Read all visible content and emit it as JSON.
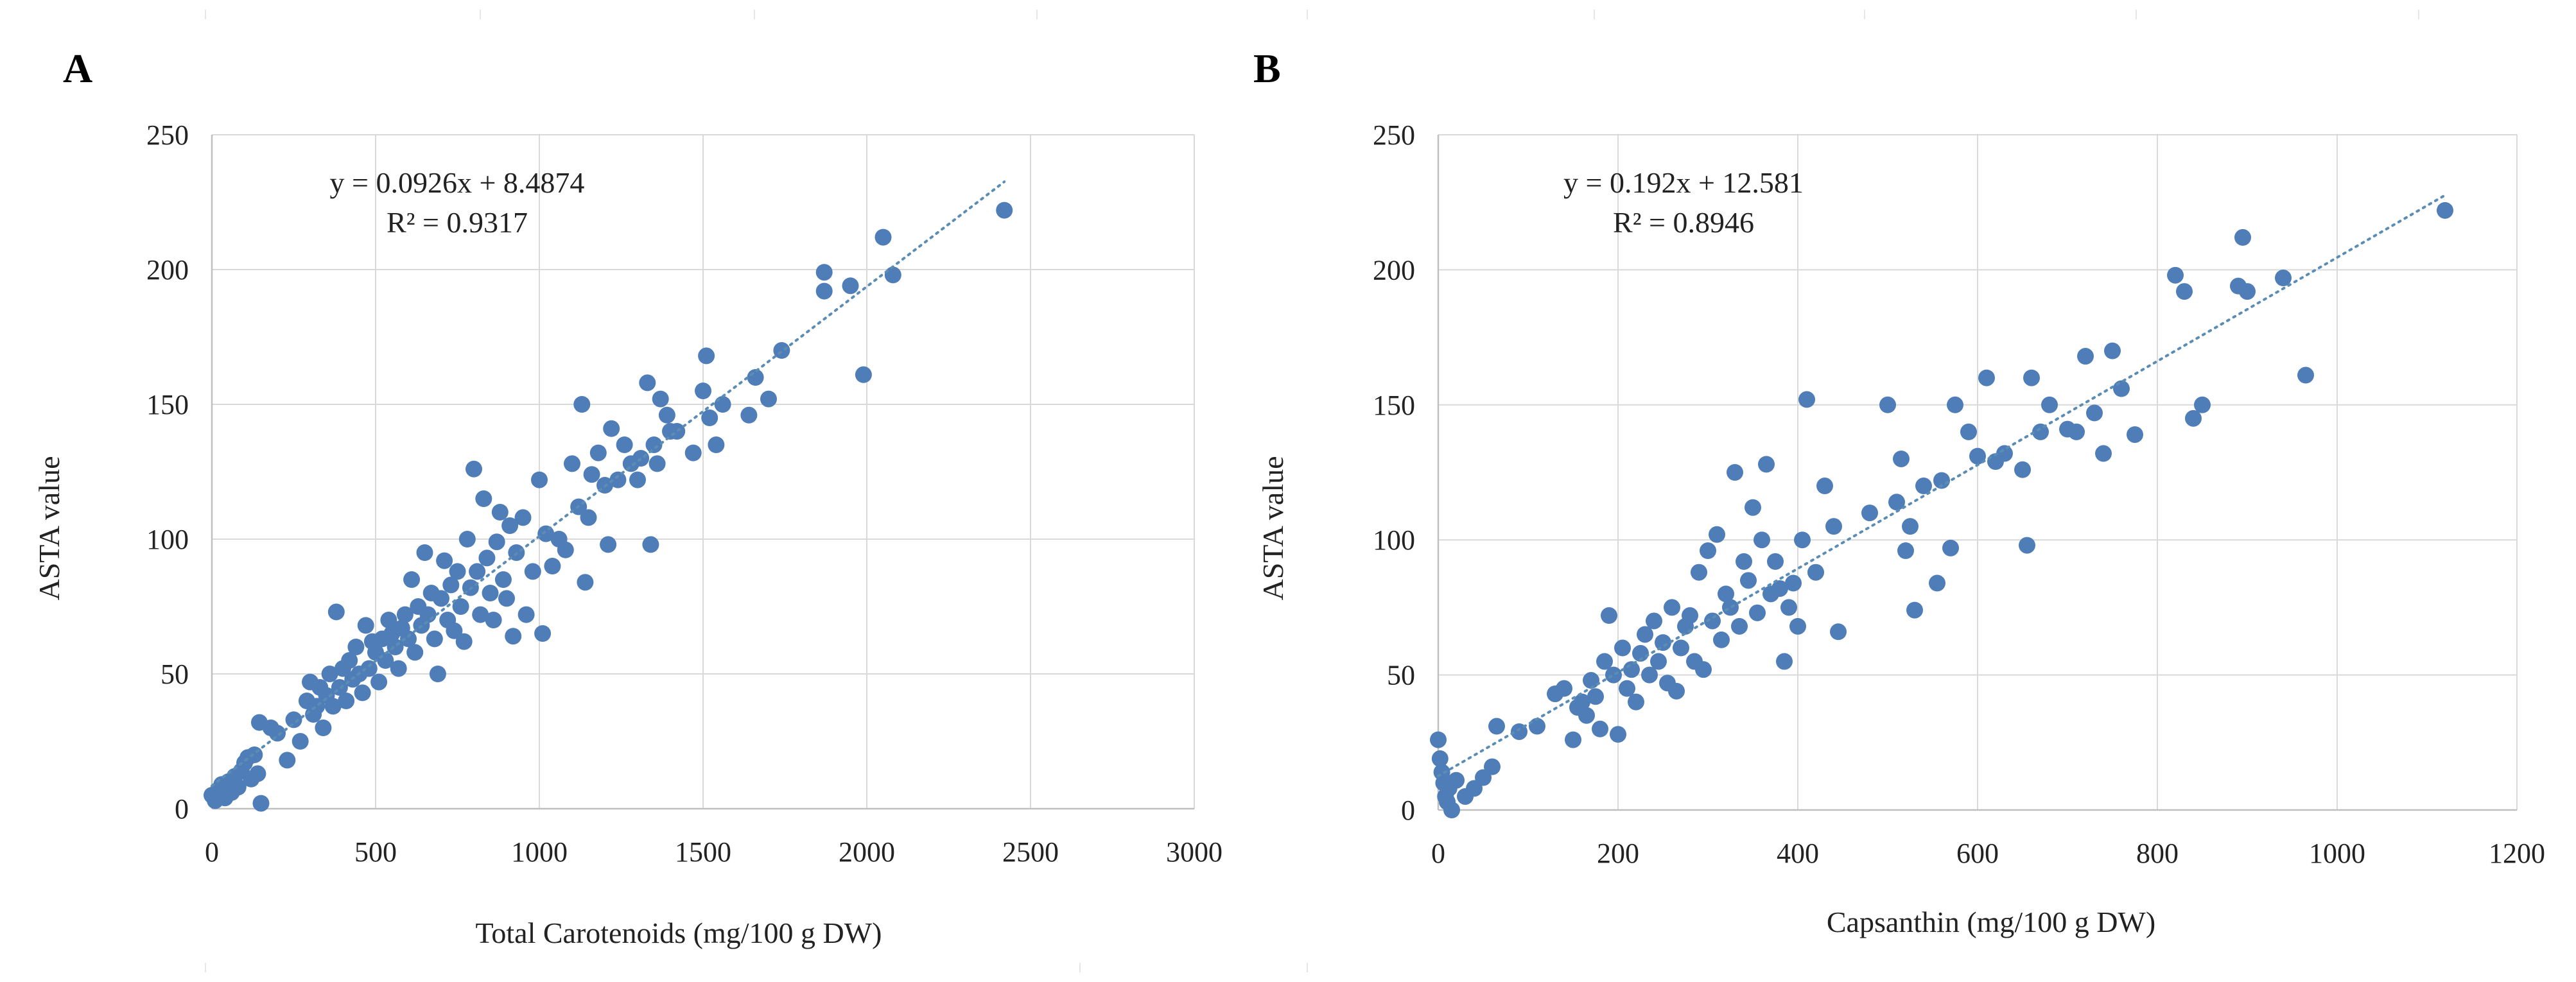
{
  "colors": {
    "points": "#4f7db8",
    "trendline": "#5b8db4",
    "grid": "#d9d9d9"
  },
  "chart_data": [
    {
      "panel_label": "A",
      "type": "scatter",
      "title": "",
      "xlabel": "Total Carotenoids (mg/100 g DW)",
      "ylabel": "ASTA value",
      "xlim": [
        0,
        3000
      ],
      "ylim": [
        0,
        250
      ],
      "xticks": [
        0,
        500,
        1000,
        1500,
        2000,
        2500,
        3000
      ],
      "yticks": [
        0,
        50,
        100,
        150,
        200,
        250
      ],
      "xtick_labels": [
        "0",
        "500",
        "1000",
        "1500",
        "2000",
        "2500",
        "3000"
      ],
      "ytick_labels": [
        "0",
        "50",
        "100",
        "150",
        "200",
        "250"
      ],
      "grid": true,
      "trendline": {
        "slope": 0.0926,
        "intercept": 8.4874,
        "x_range": [
          0,
          2420
        ]
      },
      "equation": "y = 0.0926x + 8.4874",
      "r_squared": "R² = 0.9317",
      "points": [
        [
          0,
          5
        ],
        [
          10,
          3
        ],
        [
          20,
          7
        ],
        [
          30,
          9
        ],
        [
          40,
          4
        ],
        [
          50,
          10
        ],
        [
          60,
          6
        ],
        [
          70,
          12
        ],
        [
          80,
          8
        ],
        [
          90,
          14
        ],
        [
          100,
          17
        ],
        [
          110,
          19
        ],
        [
          120,
          11
        ],
        [
          130,
          20
        ],
        [
          140,
          13
        ],
        [
          150,
          2
        ],
        [
          145,
          32
        ],
        [
          180,
          30
        ],
        [
          200,
          28
        ],
        [
          230,
          18
        ],
        [
          250,
          33
        ],
        [
          270,
          25
        ],
        [
          290,
          40
        ],
        [
          300,
          47
        ],
        [
          310,
          35
        ],
        [
          320,
          38
        ],
        [
          330,
          45
        ],
        [
          340,
          30
        ],
        [
          350,
          42
        ],
        [
          360,
          50
        ],
        [
          370,
          38
        ],
        [
          380,
          73
        ],
        [
          390,
          45
        ],
        [
          400,
          52
        ],
        [
          410,
          40
        ],
        [
          420,
          55
        ],
        [
          430,
          48
        ],
        [
          440,
          60
        ],
        [
          450,
          50
        ],
        [
          460,
          43
        ],
        [
          470,
          68
        ],
        [
          480,
          52
        ],
        [
          490,
          62
        ],
        [
          500,
          58
        ],
        [
          510,
          47
        ],
        [
          520,
          63
        ],
        [
          530,
          55
        ],
        [
          540,
          70
        ],
        [
          550,
          65
        ],
        [
          560,
          60
        ],
        [
          570,
          52
        ],
        [
          580,
          67
        ],
        [
          590,
          72
        ],
        [
          600,
          63
        ],
        [
          610,
          85
        ],
        [
          620,
          58
        ],
        [
          630,
          75
        ],
        [
          640,
          68
        ],
        [
          650,
          95
        ],
        [
          660,
          72
        ],
        [
          670,
          80
        ],
        [
          680,
          63
        ],
        [
          690,
          50
        ],
        [
          700,
          78
        ],
        [
          710,
          92
        ],
        [
          720,
          70
        ],
        [
          730,
          83
        ],
        [
          740,
          66
        ],
        [
          750,
          88
        ],
        [
          760,
          75
        ],
        [
          770,
          62
        ],
        [
          780,
          100
        ],
        [
          790,
          82
        ],
        [
          800,
          126
        ],
        [
          810,
          88
        ],
        [
          820,
          72
        ],
        [
          830,
          115
        ],
        [
          840,
          93
        ],
        [
          850,
          80
        ],
        [
          860,
          70
        ],
        [
          870,
          99
        ],
        [
          880,
          110
        ],
        [
          890,
          85
        ],
        [
          900,
          78
        ],
        [
          910,
          105
        ],
        [
          920,
          64
        ],
        [
          930,
          95
        ],
        [
          950,
          108
        ],
        [
          960,
          72
        ],
        [
          980,
          88
        ],
        [
          1000,
          122
        ],
        [
          1010,
          65
        ],
        [
          1020,
          102
        ],
        [
          1040,
          90
        ],
        [
          1060,
          100
        ],
        [
          1080,
          96
        ],
        [
          1100,
          128
        ],
        [
          1120,
          112
        ],
        [
          1130,
          150
        ],
        [
          1140,
          84
        ],
        [
          1150,
          108
        ],
        [
          1160,
          124
        ],
        [
          1180,
          132
        ],
        [
          1200,
          120
        ],
        [
          1210,
          98
        ],
        [
          1220,
          141
        ],
        [
          1240,
          122
        ],
        [
          1260,
          135
        ],
        [
          1280,
          128
        ],
        [
          1300,
          122
        ],
        [
          1310,
          130
        ],
        [
          1330,
          158
        ],
        [
          1340,
          98
        ],
        [
          1350,
          135
        ],
        [
          1360,
          128
        ],
        [
          1370,
          152
        ],
        [
          1390,
          146
        ],
        [
          1400,
          140
        ],
        [
          1420,
          140
        ],
        [
          1470,
          132
        ],
        [
          1500,
          155
        ],
        [
          1510,
          168
        ],
        [
          1520,
          145
        ],
        [
          1540,
          135
        ],
        [
          1560,
          150
        ],
        [
          1640,
          146
        ],
        [
          1660,
          160
        ],
        [
          1700,
          152
        ],
        [
          1740,
          170
        ],
        [
          1870,
          199
        ],
        [
          1870,
          192
        ],
        [
          1950,
          194
        ],
        [
          1990,
          161
        ],
        [
          2050,
          212
        ],
        [
          2080,
          198
        ],
        [
          2420,
          222
        ]
      ]
    },
    {
      "panel_label": "B",
      "type": "scatter",
      "title": "",
      "xlabel": "Capsanthin (mg/100 g DW)",
      "ylabel": "ASTA value",
      "xlim": [
        0,
        1200
      ],
      "ylim": [
        0,
        250
      ],
      "xticks": [
        0,
        200,
        400,
        600,
        800,
        1000,
        1200
      ],
      "yticks": [
        0,
        50,
        100,
        150,
        200,
        250
      ],
      "xtick_labels": [
        "0",
        "200",
        "400",
        "600",
        "800",
        "1000",
        "1200"
      ],
      "ytick_labels": [
        "0",
        "50",
        "100",
        "150",
        "200",
        "250"
      ],
      "grid": true,
      "trendline": {
        "slope": 0.192,
        "intercept": 12.581,
        "x_range": [
          0,
          1120
        ]
      },
      "equation": "y = 0.192x + 12.581",
      "r_squared": "R² = 0.8946",
      "points": [
        [
          0,
          26
        ],
        [
          2,
          19
        ],
        [
          4,
          14
        ],
        [
          6,
          10
        ],
        [
          8,
          5
        ],
        [
          10,
          3
        ],
        [
          12,
          8
        ],
        [
          15,
          0
        ],
        [
          20,
          11
        ],
        [
          30,
          5
        ],
        [
          40,
          8
        ],
        [
          50,
          12
        ],
        [
          60,
          16
        ],
        [
          65,
          31
        ],
        [
          90,
          29
        ],
        [
          110,
          31
        ],
        [
          130,
          43
        ],
        [
          140,
          45
        ],
        [
          150,
          26
        ],
        [
          155,
          38
        ],
        [
          160,
          40
        ],
        [
          165,
          35
        ],
        [
          170,
          48
        ],
        [
          175,
          42
        ],
        [
          180,
          30
        ],
        [
          185,
          55
        ],
        [
          190,
          72
        ],
        [
          195,
          50
        ],
        [
          200,
          28
        ],
        [
          205,
          60
        ],
        [
          210,
          45
        ],
        [
          215,
          52
        ],
        [
          220,
          40
        ],
        [
          225,
          58
        ],
        [
          230,
          65
        ],
        [
          235,
          50
        ],
        [
          240,
          70
        ],
        [
          245,
          55
        ],
        [
          250,
          62
        ],
        [
          255,
          47
        ],
        [
          260,
          75
        ],
        [
          265,
          44
        ],
        [
          270,
          60
        ],
        [
          275,
          68
        ],
        [
          280,
          72
        ],
        [
          285,
          55
        ],
        [
          290,
          88
        ],
        [
          295,
          52
        ],
        [
          300,
          96
        ],
        [
          305,
          70
        ],
        [
          310,
          102
        ],
        [
          315,
          63
        ],
        [
          320,
          80
        ],
        [
          325,
          75
        ],
        [
          330,
          125
        ],
        [
          335,
          68
        ],
        [
          340,
          92
        ],
        [
          345,
          85
        ],
        [
          350,
          112
        ],
        [
          355,
          73
        ],
        [
          360,
          100
        ],
        [
          365,
          128
        ],
        [
          370,
          80
        ],
        [
          375,
          92
        ],
        [
          380,
          82
        ],
        [
          385,
          55
        ],
        [
          390,
          75
        ],
        [
          395,
          84
        ],
        [
          400,
          68
        ],
        [
          405,
          100
        ],
        [
          410,
          152
        ],
        [
          420,
          88
        ],
        [
          430,
          120
        ],
        [
          440,
          105
        ],
        [
          445,
          66
        ],
        [
          480,
          110
        ],
        [
          500,
          150
        ],
        [
          510,
          114
        ],
        [
          515,
          130
        ],
        [
          520,
          96
        ],
        [
          525,
          105
        ],
        [
          530,
          74
        ],
        [
          540,
          120
        ],
        [
          555,
          84
        ],
        [
          560,
          122
        ],
        [
          570,
          97
        ],
        [
          575,
          150
        ],
        [
          590,
          140
        ],
        [
          600,
          131
        ],
        [
          610,
          160
        ],
        [
          620,
          129
        ],
        [
          630,
          132
        ],
        [
          650,
          126
        ],
        [
          655,
          98
        ],
        [
          660,
          160
        ],
        [
          670,
          140
        ],
        [
          680,
          150
        ],
        [
          700,
          141
        ],
        [
          710,
          140
        ],
        [
          720,
          168
        ],
        [
          730,
          147
        ],
        [
          740,
          132
        ],
        [
          750,
          170
        ],
        [
          760,
          156
        ],
        [
          775,
          139
        ],
        [
          820,
          198
        ],
        [
          830,
          192
        ],
        [
          840,
          145
        ],
        [
          850,
          150
        ],
        [
          890,
          194
        ],
        [
          895,
          212
        ],
        [
          900,
          192
        ],
        [
          940,
          197
        ],
        [
          965,
          161
        ],
        [
          1120,
          222
        ]
      ]
    }
  ]
}
